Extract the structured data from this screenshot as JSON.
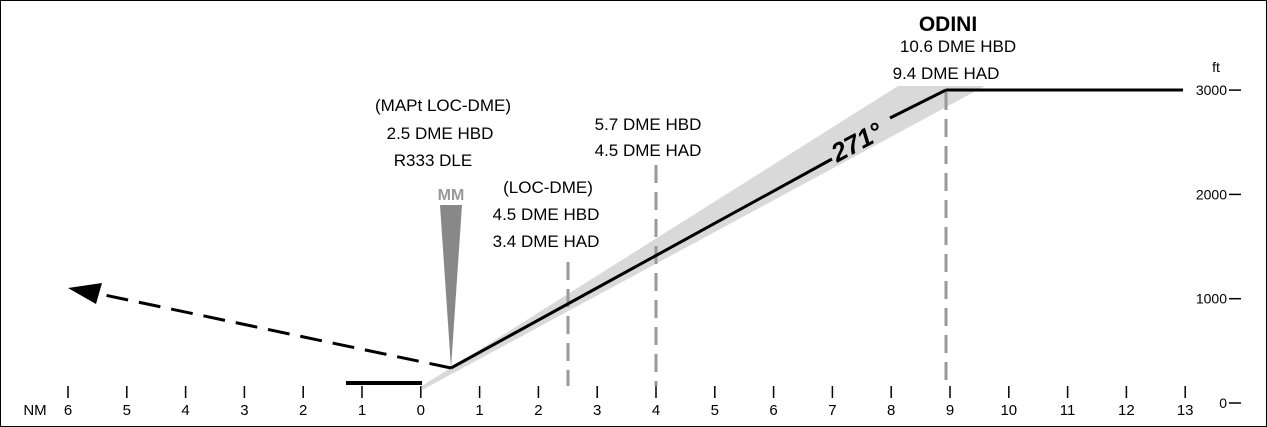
{
  "profile": {
    "course_label": "271°",
    "altitude_unit": "ft",
    "distance_unit": "NM",
    "distance_ticks": [
      "6",
      "5",
      "4",
      "3",
      "2",
      "1",
      "0",
      "1",
      "2",
      "3",
      "4",
      "5",
      "6",
      "7",
      "8",
      "9",
      "10",
      "11",
      "12",
      "13"
    ],
    "altitude_ticks": [
      {
        "label": "3000",
        "value": 3000
      },
      {
        "label": "2000",
        "value": 2000
      },
      {
        "label": "1000",
        "value": 1000
      },
      {
        "label": "0",
        "value": 0
      }
    ],
    "fixes": [
      {
        "name": "ODINI",
        "lines": [
          "10.6 DME HBD",
          "9.4 DME HAD"
        ],
        "distance_nm": 9,
        "altitude_ft": 3000
      },
      {
        "name": "",
        "lines": [
          "5.7 DME HBD",
          "4.5 DME HAD"
        ],
        "distance_nm": 4
      },
      {
        "name": "",
        "lines": [
          "(LOC-DME)",
          "4.5 DME HBD",
          "3.4 DME HAD"
        ],
        "distance_nm": 2.5
      },
      {
        "name": "",
        "lines": [
          "(MAPt LOC-DME)",
          "2.5 DME HBD",
          "R333 DLE"
        ],
        "distance_nm": 0.5
      }
    ],
    "middle_marker": "MM",
    "descent_path": [
      {
        "distance_nm": 13,
        "altitude_ft": 3000
      },
      {
        "distance_nm": 9,
        "altitude_ft": 3000
      },
      {
        "distance_nm": 0.5,
        "altitude_ft": 340
      }
    ],
    "colors": {
      "path": "#000000",
      "dashed_fix": "#999999",
      "marker": "#888888",
      "corridor": "#d9d9d9"
    }
  }
}
